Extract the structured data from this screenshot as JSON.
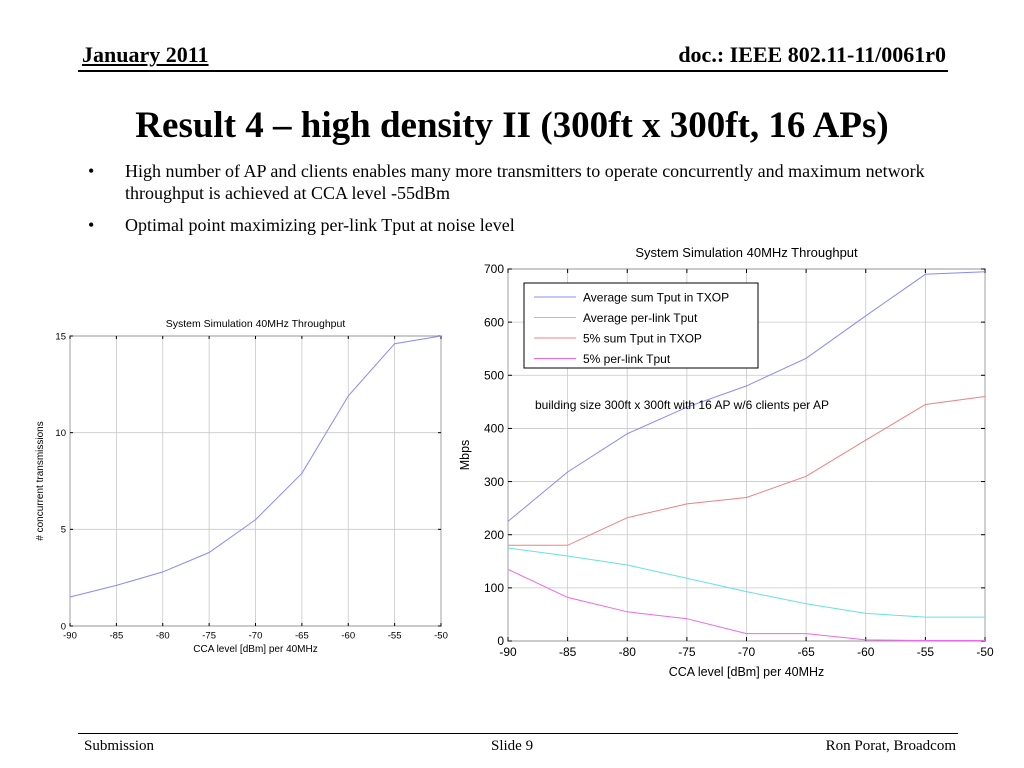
{
  "header": {
    "date": "January 2011",
    "doc": "doc.: IEEE 802.11-11/0061r0"
  },
  "title": "Result 4 – high density II (300ft x 300ft, 16 APs)",
  "bullets": [
    "High number of AP and clients enables many more transmitters to operate concurrently and maximum network throughput is achieved at CCA level -55dBm",
    "Optimal point maximizing per-link Tput at noise level"
  ],
  "bullet_glyph": "•",
  "footer": {
    "left": "Submission",
    "center": "Slide 9",
    "right": "Ron Porat, Broadcom"
  },
  "chart_data": [
    {
      "type": "line",
      "title": "System Simulation 40MHz Throughput",
      "xlabel": "CCA level [dBm] per 40MHz",
      "ylabel": "# concurrent transmissions",
      "x": [
        -90,
        -85,
        -80,
        -75,
        -70,
        -65,
        -60,
        -55,
        -50
      ],
      "xlim": [
        -90,
        -50
      ],
      "ylim": [
        0,
        15
      ],
      "xticks": [
        -90,
        -85,
        -80,
        -75,
        -70,
        -65,
        -60,
        -55,
        -50
      ],
      "yticks": [
        0,
        5,
        10,
        15
      ],
      "grid": true,
      "series": [
        {
          "values": [
            1.5,
            2.1,
            2.8,
            3.8,
            5.5,
            7.9,
            11.9,
            14.6,
            15.0
          ],
          "color": "#8888ff"
        }
      ]
    },
    {
      "type": "line",
      "title": "System Simulation 40MHz Throughput",
      "xlabel": "CCA level [dBm] per 40MHz",
      "ylabel": "Mbps",
      "x": [
        -90,
        -85,
        -80,
        -75,
        -70,
        -65,
        -60,
        -55,
        -50
      ],
      "xlim": [
        -90,
        -50
      ],
      "ylim": [
        0,
        700
      ],
      "xticks": [
        -90,
        -85,
        -80,
        -75,
        -70,
        -65,
        -60,
        -55,
        -50
      ],
      "yticks": [
        0,
        100,
        200,
        300,
        400,
        500,
        600,
        700
      ],
      "grid": true,
      "legend": "top-left",
      "annotation": "building size 300ft x 300ft with 16 AP w/6 clients per AP",
      "series": [
        {
          "name": "Average sum Tput in TXOP",
          "values": [
            225,
            318,
            390,
            440,
            480,
            532,
            612,
            690,
            695
          ],
          "color": "#8888ff"
        },
        {
          "name": "Average per-link Tput",
          "values": [
            175,
            160,
            143,
            118,
            93,
            70,
            52,
            45,
            45
          ],
          "color": "#66e0e8"
        },
        {
          "name": "5% sum Tput in TXOP",
          "values": [
            180,
            180,
            232,
            258,
            270,
            310,
            378,
            445,
            460
          ],
          "color": "#f08080"
        },
        {
          "name": "5% per-link Tput",
          "values": [
            135,
            82,
            55,
            42,
            14,
            14,
            2,
            1,
            1
          ],
          "color": "#ee66ee"
        }
      ]
    }
  ]
}
